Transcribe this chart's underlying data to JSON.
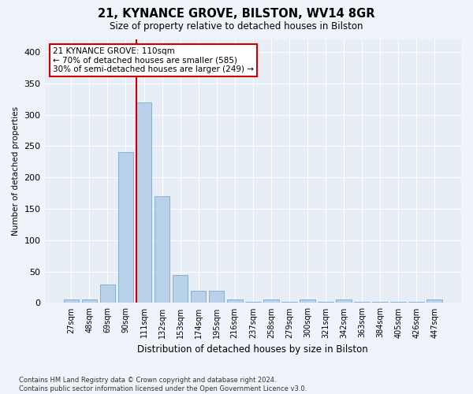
{
  "title1": "21, KYNANCE GROVE, BILSTON, WV14 8GR",
  "title2": "Size of property relative to detached houses in Bilston",
  "xlabel": "Distribution of detached houses by size in Bilston",
  "ylabel": "Number of detached properties",
  "footnote": "Contains HM Land Registry data © Crown copyright and database right 2024.\nContains public sector information licensed under the Open Government Licence v3.0.",
  "categories": [
    "27sqm",
    "48sqm",
    "69sqm",
    "90sqm",
    "111sqm",
    "132sqm",
    "153sqm",
    "174sqm",
    "195sqm",
    "216sqm",
    "237sqm",
    "258sqm",
    "279sqm",
    "300sqm",
    "321sqm",
    "342sqm",
    "363sqm",
    "384sqm",
    "405sqm",
    "426sqm",
    "447sqm"
  ],
  "values": [
    5,
    5,
    30,
    240,
    320,
    170,
    45,
    20,
    20,
    5,
    2,
    5,
    2,
    5,
    2,
    5,
    2,
    2,
    2,
    2,
    5
  ],
  "bar_color": "#b8d0e8",
  "bar_edge_color": "#7aaacf",
  "bg_color": "#e8eef6",
  "fig_bg_color": "#f0f4fa",
  "grid_color": "#ffffff",
  "vline_color": "#cc0000",
  "annotation_box_text": "21 KYNANCE GROVE: 110sqm\n← 70% of detached houses are smaller (585)\n30% of semi-detached houses are larger (249) →",
  "annotation_box_color": "#cc0000",
  "annotation_box_fill": "#ffffff",
  "ylim": [
    0,
    420
  ],
  "yticks": [
    0,
    50,
    100,
    150,
    200,
    250,
    300,
    350,
    400
  ]
}
